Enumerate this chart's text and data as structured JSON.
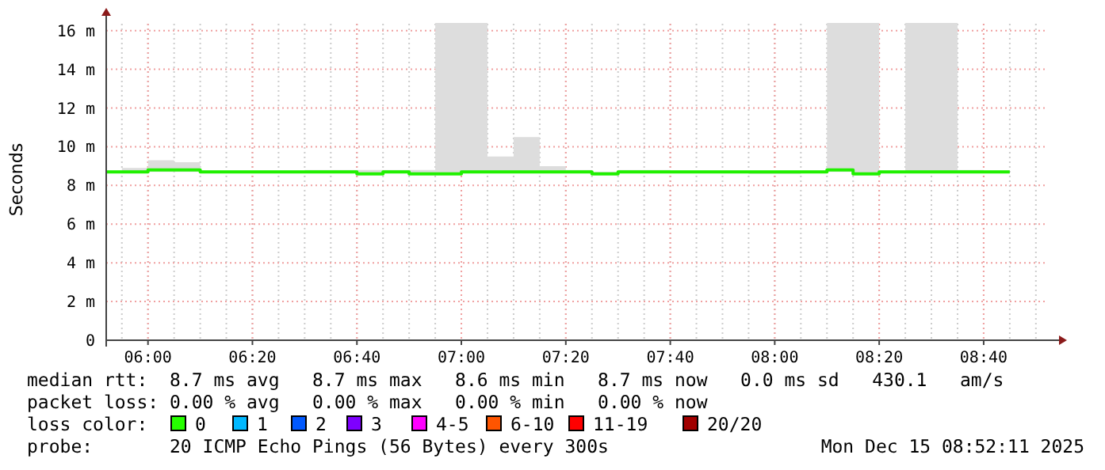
{
  "chart_data": {
    "type": "step",
    "ylabel": "Seconds",
    "xlim": [
      5.8667,
      8.8667
    ],
    "xticks": [
      {
        "value": 6,
        "label": "06:00"
      },
      {
        "value": 6.3333,
        "label": "06:20"
      },
      {
        "value": 6.6667,
        "label": "06:40"
      },
      {
        "value": 7,
        "label": "07:00"
      },
      {
        "value": 7.3333,
        "label": "07:20"
      },
      {
        "value": 7.6667,
        "label": "07:40"
      },
      {
        "value": 8,
        "label": "08:00"
      },
      {
        "value": 8.3333,
        "label": "08:20"
      },
      {
        "value": 8.6667,
        "label": "08:40"
      }
    ],
    "ylim": [
      0,
      16.6
    ],
    "yticks": [
      0,
      {
        "value": 2,
        "label": "2 m"
      },
      {
        "value": 4,
        "label": "4 m"
      },
      {
        "value": 6,
        "label": "6 m"
      },
      {
        "value": 8,
        "label": "8 m"
      },
      {
        "value": 10,
        "label": "10 m"
      },
      {
        "value": 12,
        "label": "12 m"
      },
      {
        "value": 14,
        "label": "14 m"
      },
      {
        "value": 16,
        "label": "16 m"
      }
    ],
    "grid": true,
    "x": [
      5.8667,
      5.9167,
      6.0,
      6.0833,
      6.1667,
      6.25,
      6.3333,
      6.4167,
      6.5,
      6.5833,
      6.6667,
      6.75,
      6.8333,
      6.9167,
      7.0,
      7.0833,
      7.1667,
      7.25,
      7.3333,
      7.4167,
      7.5,
      7.5833,
      7.6667,
      7.75,
      7.8333,
      7.9167,
      8.0,
      8.0833,
      8.1667,
      8.25,
      8.3333,
      8.4167,
      8.5,
      8.5833,
      8.6667,
      8.75
    ],
    "series": [
      {
        "color": "#20f000",
        "values": [
          8.7,
          8.7,
          8.8,
          8.8,
          8.7,
          8.7,
          8.7,
          8.7,
          8.7,
          8.7,
          8.6,
          8.7,
          8.6,
          8.6,
          8.7,
          8.7,
          8.7,
          8.7,
          8.7,
          8.6,
          8.7,
          8.7,
          8.7,
          8.7,
          8.7,
          8.7,
          8.7,
          8.7,
          8.8,
          8.6,
          8.7,
          8.7,
          8.7,
          8.7,
          8.7,
          8.7
        ],
        "lower": [
          8.7,
          8.7,
          8.7,
          8.7,
          8.7,
          8.7,
          8.7,
          8.7,
          8.7,
          8.7,
          8.6,
          8.7,
          8.6,
          8.6,
          8.7,
          8.7,
          8.7,
          8.7,
          8.7,
          8.6,
          8.7,
          8.7,
          8.7,
          8.7,
          8.7,
          8.6,
          8.6,
          8.7,
          8.7,
          8.6,
          8.7,
          8.7,
          8.7,
          8.7,
          8.7,
          8.7
        ],
        "upper": [
          8.7,
          8.9,
          9.3,
          9.2,
          8.7,
          8.7,
          8.7,
          8.7,
          8.8,
          8.8,
          8.8,
          8.8,
          8.8,
          16.4,
          16.4,
          9.5,
          10.5,
          9.0,
          8.8,
          8.7,
          8.8,
          8.8,
          8.7,
          8.7,
          8.7,
          8.7,
          8.7,
          8.7,
          16.4,
          16.4,
          8.7,
          16.4,
          16.4,
          8.8,
          8.7,
          8.7
        ]
      }
    ],
    "annotations": [
      "median rtt:  8.7 ms avg   8.7 ms max   8.6 ms min   8.7 ms now   0.0 ms sd   430.1   am/s",
      "packet loss: 0.00 % avg   0.00 % max   0.00 % min   0.00 % now",
      "loss color:",
      "0",
      "1",
      "2",
      "3",
      "4-5",
      "6-10",
      "11-19",
      "20/20",
      "probe:       20 ICMP Echo Pings (56 Bytes) every 300s",
      "Mon Dec 15 08:52:11 2025"
    ]
  }
}
